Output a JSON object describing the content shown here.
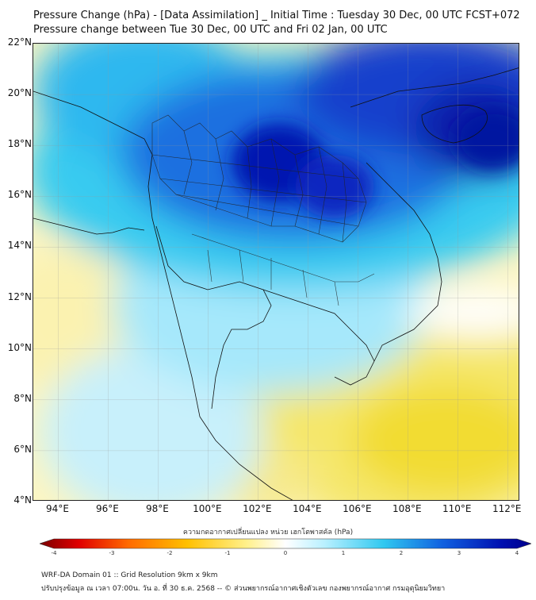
{
  "title_line1": "Pressure Change (hPa) - [Data Assimilation] _ Initial Time : Tuesday 30 Dec, 00 UTC FCST+072",
  "title_line2": "Pressure change between Tue 30 Dec, 00 UTC and Fri 02 Jan, 00 UTC",
  "map": {
    "lat_range": [
      4,
      22
    ],
    "lon_range": [
      93,
      112.5
    ],
    "lat_labels": [
      "4°N",
      "6°N",
      "8°N",
      "10°N",
      "12°N",
      "14°N",
      "16°N",
      "18°N",
      "20°N",
      "22°N"
    ],
    "lon_labels": [
      "94°E",
      "96°E",
      "98°E",
      "100°E",
      "102°E",
      "104°E",
      "106°E",
      "108°E",
      "110°E",
      "112°E"
    ],
    "colors": {
      "strong_fall": "#0014b0",
      "fall": "#1f7fe8",
      "slight_fall": "#3ad0f0",
      "neutral": "#ffffff",
      "rise": "#f7ec8a",
      "strong_rise": "#f2dc32"
    }
  },
  "colorbar": {
    "label": "ความกดอากาศเปลี่ยนแปลง หน่วย เฮกโตพาสคัล (hPa)",
    "ticks": [
      "-4",
      "-3",
      "-2",
      "-1",
      "0",
      "1",
      "2",
      "3",
      "4"
    ],
    "range": [
      -4,
      4
    ],
    "low_color": "#6e0000",
    "high_color": "#00008c"
  },
  "footer_line1": "WRF-DA Domain 01 :: Grid Resolution 9km x 9km",
  "footer_line2": "ปรับปรุงข้อมูล ณ เวลา 07:00น. วัน อ. ที่ 30 ธ.ค. 2568 -- © ส่วนพยากรณ์อากาศเชิงตัวเลข กองพยากรณ์อากาศ กรมอุตุนิยมวิทยา"
}
